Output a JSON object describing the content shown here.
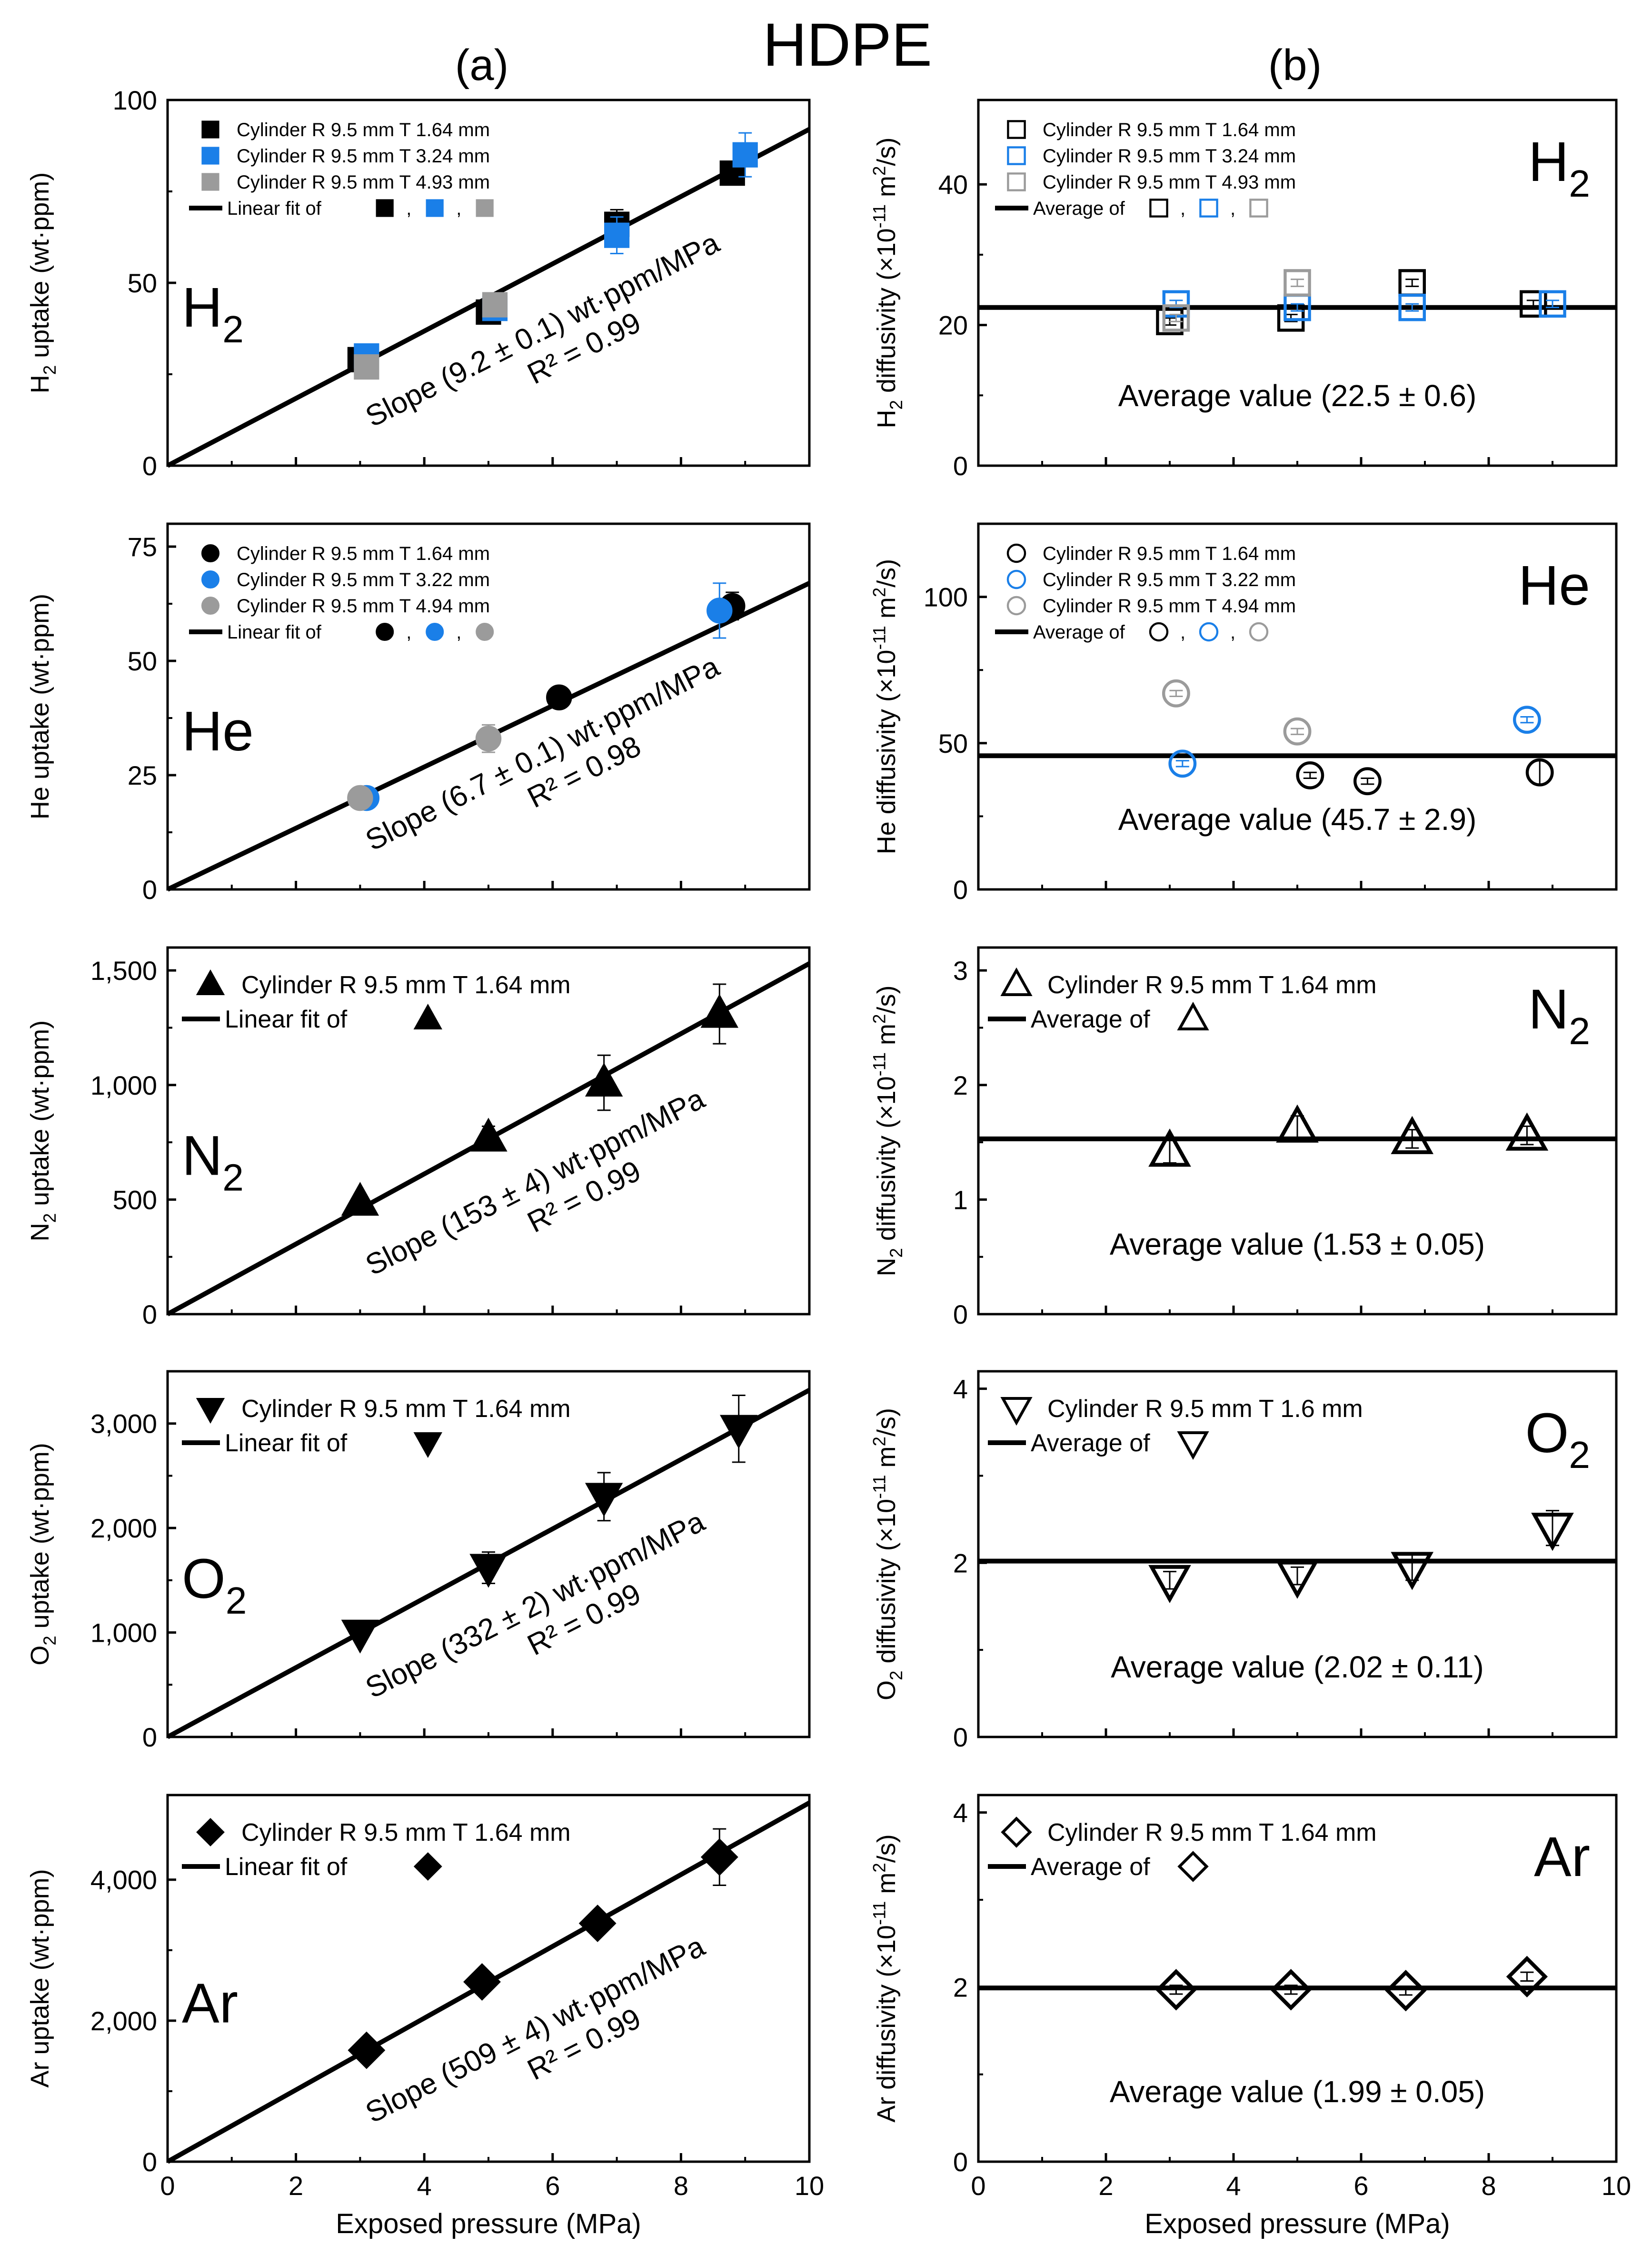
{
  "figure": {
    "title": "HDPE",
    "col_a_label": "(a)",
    "col_b_label": "(b)",
    "xlabel": "Exposed pressure (MPa)",
    "x_ticks": [
      "0",
      "2",
      "4",
      "6",
      "8",
      "10"
    ]
  },
  "chart_data": [
    {
      "id": "a-h2",
      "type": "scatter",
      "gas": "H2",
      "gas_label": [
        "H",
        "2"
      ],
      "ylabel": [
        "H",
        "2",
        " uptake (wt·ppm)"
      ],
      "xlim": [
        0,
        10
      ],
      "ylim": [
        0,
        100
      ],
      "yticks": [
        0,
        50,
        100
      ],
      "ytick_labels": [
        "0",
        "50",
        "100"
      ],
      "marker": "square",
      "filled": true,
      "series": [
        {
          "name": "Cylinder R 9.5 mm T 1.64 mm",
          "color": "#000000",
          "x": [
            3.0,
            5.0,
            7.0,
            8.8
          ],
          "y": [
            29,
            42,
            66,
            80
          ],
          "err": [
            2,
            2,
            4,
            3
          ]
        },
        {
          "name": "Cylinder R 9.5 mm T 3.24 mm",
          "color": "#1a7fe8",
          "x": [
            3.1,
            5.1,
            7.0,
            9.0
          ],
          "y": [
            30,
            43,
            63,
            85
          ],
          "err": [
            2,
            2,
            5,
            6
          ]
        },
        {
          "name": "Cylinder R 9.5 mm T 4.93 mm",
          "color": "#9b9b9b",
          "x": [
            3.1,
            5.1
          ],
          "y": [
            27,
            44
          ],
          "err": [
            2,
            2
          ]
        }
      ],
      "fit": {
        "x": [
          0,
          10
        ],
        "y": [
          0,
          92
        ],
        "label": "Linear fit of",
        "sep": ","
      },
      "annotation": {
        "slope": "Slope (9.2 ± 0.1) wt·ppm/MPa",
        "r2": "R² = 0.99"
      }
    },
    {
      "id": "b-h2",
      "type": "scatter",
      "gas": "H2",
      "gas_label": [
        "H",
        "2"
      ],
      "ylabel": [
        "H",
        "2",
        " diffusivity (×10",
        "-11",
        " m",
        "2",
        "/s)"
      ],
      "xlim": [
        0,
        10
      ],
      "ylim": [
        0,
        52
      ],
      "yticks": [
        0,
        20,
        40
      ],
      "ytick_labels": [
        "0",
        "20",
        "40"
      ],
      "marker": "square",
      "filled": false,
      "series": [
        {
          "name": "Cylinder R 9.5 mm T 1.64 mm",
          "color": "#000000",
          "x": [
            3.0,
            4.9,
            6.8,
            8.7
          ],
          "y": [
            20.5,
            21,
            26,
            23
          ],
          "err": [
            0.5,
            0.5,
            0.5,
            0.5
          ]
        },
        {
          "name": "Cylinder R 9.5 mm T 3.24 mm",
          "color": "#1a7fe8",
          "x": [
            3.1,
            5.0,
            6.8,
            9.0
          ],
          "y": [
            23,
            22.5,
            22.5,
            23
          ],
          "err": [
            0.5,
            0.5,
            0.5,
            0.5
          ]
        },
        {
          "name": "Cylinder R 9.5 mm T 4.93 mm",
          "color": "#9b9b9b",
          "x": [
            3.1,
            5.0
          ],
          "y": [
            21,
            26
          ],
          "err": [
            0.5,
            0.5
          ]
        }
      ],
      "fit": {
        "x": [
          0,
          10
        ],
        "y": [
          22.5,
          22.5
        ],
        "label": "Average of",
        "sep": ","
      },
      "annotation": {
        "avg": "Average value (22.5 ± 0.6)"
      }
    },
    {
      "id": "a-he",
      "type": "scatter",
      "gas": "He",
      "gas_label": [
        "He",
        ""
      ],
      "ylabel": [
        "He uptake (wt·ppm)"
      ],
      "xlim": [
        0,
        10
      ],
      "ylim": [
        0,
        80
      ],
      "yticks": [
        0,
        25,
        50,
        75
      ],
      "ytick_labels": [
        "0",
        "25",
        "50",
        "75"
      ],
      "marker": "circle",
      "filled": true,
      "series": [
        {
          "name": "Cylinder R 9.5 mm T 1.64 mm",
          "color": "#000000",
          "x": [
            6.1,
            8.8
          ],
          "y": [
            42,
            62
          ],
          "err": [
            2,
            3
          ]
        },
        {
          "name": "Cylinder R 9.5 mm T 3.22 mm",
          "color": "#1a7fe8",
          "x": [
            3.1,
            8.6
          ],
          "y": [
            20,
            61
          ],
          "err": [
            2,
            6
          ]
        },
        {
          "name": "Cylinder R 9.5 mm T 4.94 mm",
          "color": "#9b9b9b",
          "x": [
            3.0,
            5.0
          ],
          "y": [
            20,
            33
          ],
          "err": [
            2,
            3
          ]
        }
      ],
      "fit": {
        "x": [
          0,
          10
        ],
        "y": [
          0,
          67
        ],
        "label": "Linear fit of",
        "sep": ","
      },
      "annotation": {
        "slope": "Slope (6.7 ± 0.1) wt·ppm/MPa",
        "r2": "R² = 0.98"
      }
    },
    {
      "id": "b-he",
      "type": "scatter",
      "gas": "He",
      "gas_label": [
        "He",
        ""
      ],
      "ylabel": [
        "He diffusivity (×10",
        "-11",
        " m",
        "2",
        "/s)"
      ],
      "xlim": [
        0,
        10
      ],
      "ylim": [
        0,
        125
      ],
      "yticks": [
        0,
        50,
        100
      ],
      "ytick_labels": [
        "0",
        "50",
        "100"
      ],
      "marker": "circle",
      "filled": false,
      "series": [
        {
          "name": "Cylinder R 9.5 mm T 1.64 mm",
          "color": "#000000",
          "x": [
            5.2,
            6.1,
            8.8
          ],
          "y": [
            39,
            37,
            40
          ],
          "err": [
            1,
            1,
            4
          ]
        },
        {
          "name": "Cylinder R 9.5 mm T 3.22 mm",
          "color": "#1a7fe8",
          "x": [
            3.2,
            8.6
          ],
          "y": [
            43,
            58
          ],
          "err": [
            1,
            1
          ]
        },
        {
          "name": "Cylinder R 9.5 mm T 4.94 mm",
          "color": "#9b9b9b",
          "x": [
            3.1,
            5.0
          ],
          "y": [
            67,
            54
          ],
          "err": [
            1,
            1
          ]
        }
      ],
      "fit": {
        "x": [
          0,
          10
        ],
        "y": [
          45.7,
          45.7
        ],
        "label": "Average of",
        "sep": ","
      },
      "annotation": {
        "avg": "Average value (45.7 ± 2.9)"
      }
    },
    {
      "id": "a-n2",
      "type": "scatter",
      "gas": "N2",
      "gas_label": [
        "N",
        "2"
      ],
      "ylabel": [
        "N",
        "2",
        " uptake (wt·ppm)"
      ],
      "xlim": [
        0,
        10
      ],
      "ylim": [
        0,
        1600
      ],
      "yticks": [
        0,
        500,
        1000,
        1500
      ],
      "ytick_labels": [
        "0",
        "500",
        "1,000",
        "1,500"
      ],
      "marker": "triangle-up",
      "filled": true,
      "series": [
        {
          "name": "Cylinder R 9.5 mm T 1.64 mm",
          "color": "#000000",
          "x": [
            3.0,
            5.0,
            6.8,
            8.6
          ],
          "y": [
            490,
            770,
            1010,
            1310
          ],
          "err": [
            30,
            50,
            120,
            130
          ]
        }
      ],
      "fit": {
        "x": [
          0,
          10
        ],
        "y": [
          0,
          1530
        ],
        "label": "Linear fit of",
        "sep": ""
      },
      "annotation": {
        "slope": "Slope (153 ± 4) wt·ppm/MPa",
        "r2": "R² = 0.99"
      }
    },
    {
      "id": "b-n2",
      "type": "scatter",
      "gas": "N2",
      "gas_label": [
        "N",
        "2"
      ],
      "ylabel": [
        "N",
        "2",
        " diffusivity (×10",
        "-11",
        " m",
        "2",
        "/s)"
      ],
      "xlim": [
        0,
        10
      ],
      "ylim": [
        0,
        3.2
      ],
      "yticks": [
        0,
        1,
        2,
        3
      ],
      "ytick_labels": [
        "0",
        "1",
        "2",
        "3"
      ],
      "marker": "triangle-up",
      "filled": false,
      "series": [
        {
          "name": "Cylinder R 9.5 mm T 1.64 mm",
          "color": "#000000",
          "x": [
            3.0,
            5.0,
            6.8,
            8.6
          ],
          "y": [
            1.42,
            1.63,
            1.53,
            1.56
          ],
          "err": [
            0.1,
            0.1,
            0.08,
            0.08
          ]
        }
      ],
      "fit": {
        "x": [
          0,
          10
        ],
        "y": [
          1.53,
          1.53
        ],
        "label": "Average of",
        "sep": ""
      },
      "annotation": {
        "avg": "Average value (1.53 ± 0.05)"
      }
    },
    {
      "id": "a-o2",
      "type": "scatter",
      "gas": "O2",
      "gas_label": [
        "O",
        "2"
      ],
      "ylabel": [
        "O",
        "2",
        " uptake (wt·ppm)"
      ],
      "xlim": [
        0,
        10
      ],
      "ylim": [
        0,
        3500
      ],
      "yticks": [
        0,
        1000,
        2000,
        3000
      ],
      "ytick_labels": [
        "0",
        "1,000",
        "2,000",
        "3,000"
      ],
      "marker": "triangle-down",
      "filled": true,
      "series": [
        {
          "name": "Cylinder R 9.5 mm T 1.64 mm",
          "color": "#000000",
          "x": [
            3.0,
            5.0,
            6.8,
            8.9
          ],
          "y": [
            990,
            1620,
            2300,
            2950
          ],
          "err": [
            60,
            150,
            230,
            320
          ]
        }
      ],
      "fit": {
        "x": [
          0,
          10
        ],
        "y": [
          0,
          3320
        ],
        "label": "Linear fit of",
        "sep": ""
      },
      "annotation": {
        "slope": "Slope (332 ± 2) wt·ppm/MPa",
        "r2": "R² = 0.99"
      }
    },
    {
      "id": "b-o2",
      "type": "scatter",
      "gas": "O2",
      "gas_label": [
        "O",
        "2"
      ],
      "ylabel": [
        "O",
        "2",
        " diffusivity (×10",
        "-11",
        " m",
        "2",
        "/s)"
      ],
      "xlim": [
        0,
        10
      ],
      "ylim": [
        0,
        4.2
      ],
      "yticks": [
        0,
        2,
        4
      ],
      "ytick_labels": [
        "0",
        "2",
        "4"
      ],
      "marker": "triangle-down",
      "filled": false,
      "series": [
        {
          "name": "Cylinder R 9.5 mm T 1.6 mm",
          "color": "#000000",
          "x": [
            3.0,
            5.0,
            6.8,
            9.0
          ],
          "y": [
            1.8,
            1.85,
            1.95,
            2.4
          ],
          "err": [
            0.1,
            0.1,
            0.15,
            0.2
          ]
        }
      ],
      "fit": {
        "x": [
          0,
          10
        ],
        "y": [
          2.02,
          2.02
        ],
        "label": "Average of",
        "sep": ""
      },
      "annotation": {
        "avg": "Average value (2.02 ± 0.11)"
      }
    },
    {
      "id": "a-ar",
      "type": "scatter",
      "gas": "Ar",
      "gas_label": [
        "Ar",
        ""
      ],
      "ylabel": [
        "Ar uptake (wt·ppm)"
      ],
      "xlim": [
        0,
        10
      ],
      "ylim": [
        0,
        5200
      ],
      "yticks": [
        0,
        2000,
        4000
      ],
      "ytick_labels": [
        "0",
        "2,000",
        "4,000"
      ],
      "marker": "diamond",
      "filled": true,
      "series": [
        {
          "name": "Cylinder R 9.5 mm T 1.64 mm",
          "color": "#000000",
          "x": [
            3.1,
            4.9,
            6.7,
            8.6
          ],
          "y": [
            1580,
            2550,
            3380,
            4320
          ],
          "err": [
            80,
            120,
            150,
            400
          ]
        }
      ],
      "fit": {
        "x": [
          0,
          10
        ],
        "y": [
          0,
          5090
        ],
        "label": "Linear fit of",
        "sep": ""
      },
      "annotation": {
        "slope": "Slope (509 ± 4) wt·ppm/MPa",
        "r2": "R² = 0.99"
      }
    },
    {
      "id": "b-ar",
      "type": "scatter",
      "gas": "Ar",
      "gas_label": [
        "Ar",
        ""
      ],
      "ylabel": [
        "Ar diffusivity (×10",
        "-11",
        " m",
        "2",
        "/s)"
      ],
      "xlim": [
        0,
        10
      ],
      "ylim": [
        0,
        4.2
      ],
      "yticks": [
        0,
        2,
        4
      ],
      "ytick_labels": [
        "0",
        "2",
        "4"
      ],
      "marker": "diamond",
      "filled": false,
      "series": [
        {
          "name": "Cylinder R 9.5 mm T 1.64 mm",
          "color": "#000000",
          "x": [
            3.1,
            4.9,
            6.7,
            8.6
          ],
          "y": [
            1.97,
            1.97,
            1.96,
            2.12
          ],
          "err": [
            0.05,
            0.05,
            0.05,
            0.05
          ]
        }
      ],
      "fit": {
        "x": [
          0,
          10
        ],
        "y": [
          1.99,
          1.99
        ],
        "label": "Average of",
        "sep": ""
      },
      "annotation": {
        "avg": "Average value (1.99 ± 0.05)"
      }
    }
  ]
}
